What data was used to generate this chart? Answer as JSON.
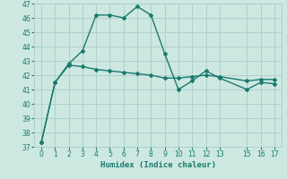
{
  "xlabel": "Humidex (Indice chaleur)",
  "bg_color": "#cce8e0",
  "grid_color": "#aacccc",
  "line_color": "#1a7a6e",
  "x_upper": [
    0,
    1,
    2,
    3,
    4,
    5,
    6,
    7,
    8,
    9,
    10,
    11,
    12,
    13,
    15,
    16,
    17
  ],
  "y_upper": [
    37.3,
    41.5,
    42.8,
    43.7,
    46.2,
    46.2,
    46.0,
    46.8,
    46.2,
    43.5,
    41.0,
    41.6,
    42.3,
    41.8,
    41.0,
    41.5,
    41.4
  ],
  "x_lower": [
    0,
    1,
    2,
    3,
    4,
    5,
    6,
    7,
    8,
    9,
    10,
    11,
    12,
    13,
    15,
    16,
    17
  ],
  "y_lower": [
    37.3,
    41.5,
    42.7,
    42.6,
    42.4,
    42.3,
    42.2,
    42.1,
    42.0,
    41.8,
    41.8,
    41.9,
    42.0,
    41.9,
    41.6,
    41.7,
    41.7
  ],
  "ylim": [
    37,
    47
  ],
  "xlim": [
    -0.5,
    17.5
  ],
  "yticks": [
    37,
    38,
    39,
    40,
    41,
    42,
    43,
    44,
    45,
    46,
    47
  ],
  "xticks": [
    0,
    1,
    2,
    3,
    4,
    5,
    6,
    7,
    8,
    9,
    10,
    11,
    12,
    13,
    15,
    16,
    17
  ],
  "marker": "D",
  "markersize": 2.0,
  "linewidth": 1.0,
  "tick_fontsize": 5.5,
  "xlabel_fontsize": 6.5
}
